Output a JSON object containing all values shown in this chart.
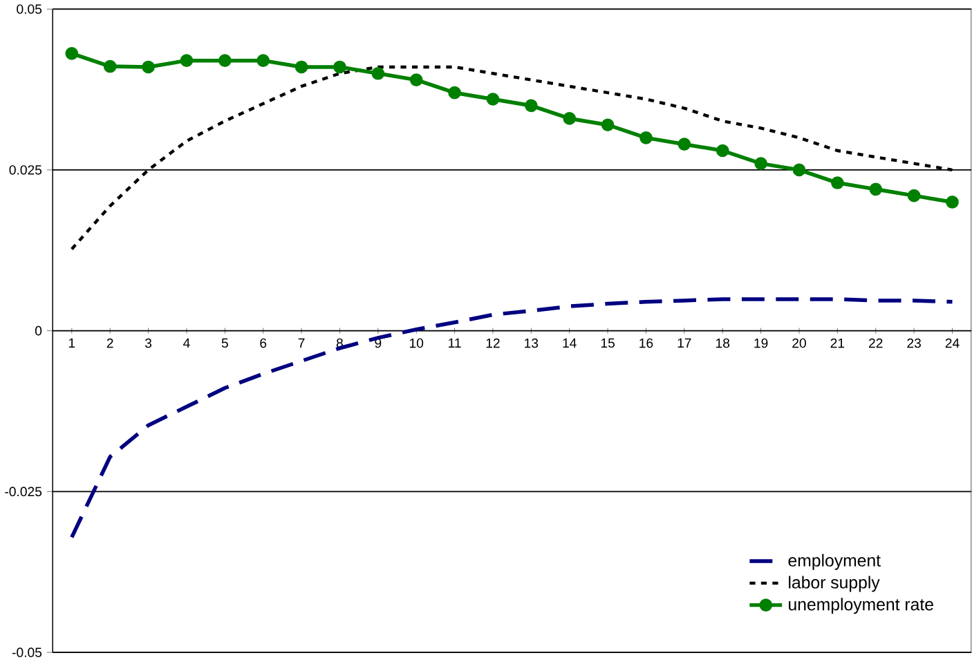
{
  "chart_data": {
    "type": "line",
    "categories": [
      "1",
      "2",
      "3",
      "4",
      "5",
      "6",
      "7",
      "8",
      "9",
      "10",
      "11",
      "12",
      "13",
      "14",
      "15",
      "16",
      "17",
      "18",
      "19",
      "20",
      "21",
      "22",
      "23",
      "24"
    ],
    "series": [
      {
        "name": "employment",
        "color": "#000080",
        "line_style": "dashed",
        "marker": "none",
        "values": [
          -0.0321,
          -0.0196,
          -0.0147,
          -0.0118,
          -0.0089,
          -0.0067,
          -0.0047,
          -0.0027,
          -0.0011,
          0.0002,
          0.0013,
          0.0025,
          0.0031,
          0.0038,
          0.0042,
          0.0045,
          0.0047,
          0.0049,
          0.0049,
          0.0049,
          0.0049,
          0.0047,
          0.0047,
          0.0045
        ]
      },
      {
        "name": "labor supply",
        "color": "#000000",
        "line_style": "dotted",
        "marker": "none",
        "values": [
          0.0127,
          0.0194,
          0.025,
          0.0295,
          0.0326,
          0.0353,
          0.038,
          0.04,
          0.041,
          0.041,
          0.041,
          0.04,
          0.039,
          0.038,
          0.037,
          0.036,
          0.0346,
          0.0326,
          0.0315,
          0.03,
          0.028,
          0.027,
          0.026,
          0.025
        ]
      },
      {
        "name": "unemployment rate",
        "color": "#008000",
        "line_style": "solid",
        "marker": "circle",
        "values": [
          0.0431,
          0.0411,
          0.041,
          0.042,
          0.042,
          0.042,
          0.041,
          0.041,
          0.04,
          0.039,
          0.037,
          0.036,
          0.035,
          0.033,
          0.032,
          0.03,
          0.029,
          0.028,
          0.026,
          0.025,
          0.023,
          0.022,
          0.021,
          0.02
        ]
      }
    ],
    "ylim": [
      -0.05,
      0.05
    ],
    "yticks": [
      -0.05,
      -0.025,
      0,
      0.025,
      0.05
    ],
    "grid": "y",
    "legend": "bottom right"
  }
}
